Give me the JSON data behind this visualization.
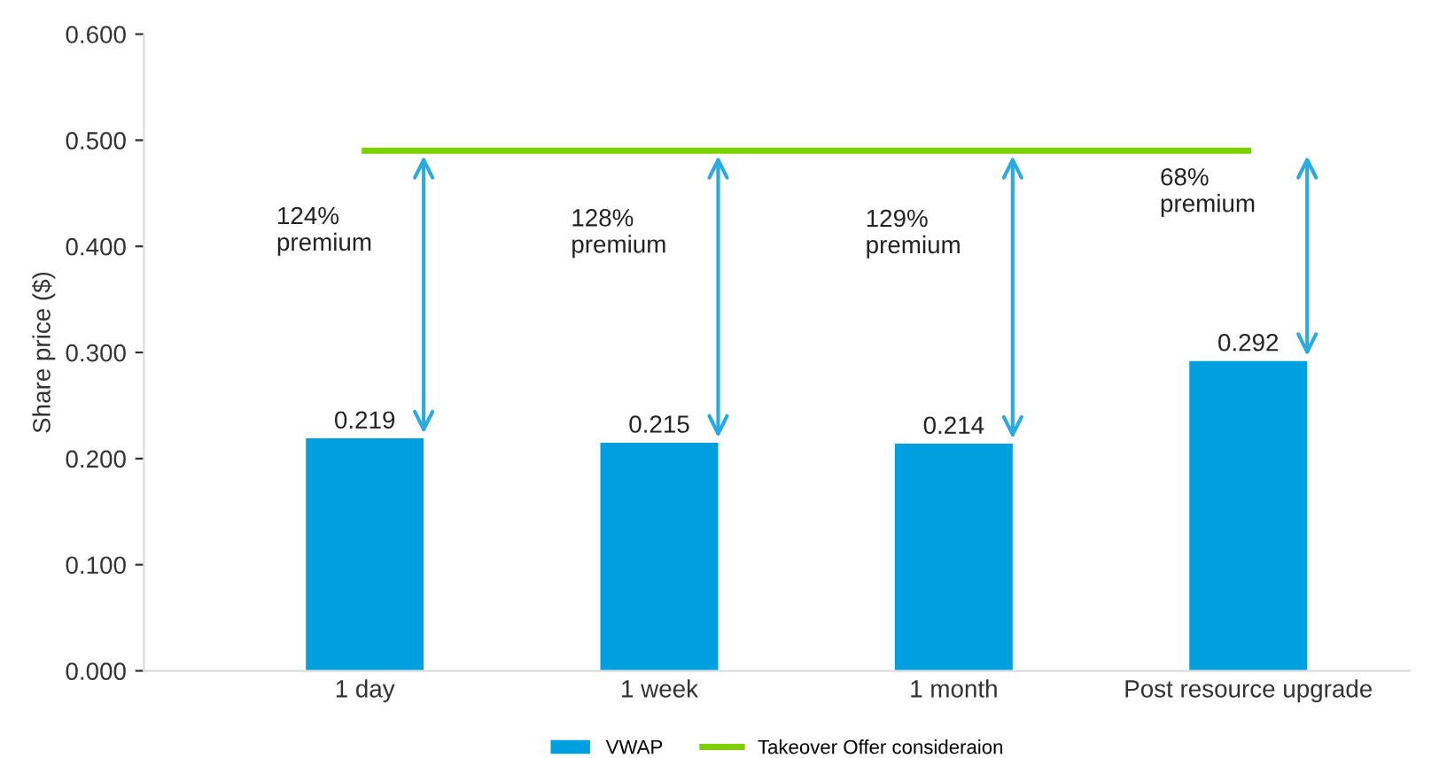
{
  "chart_data": {
    "type": "bar",
    "ylabel": "Share price ($)",
    "categories": [
      "1 day",
      "1 week",
      "1 month",
      "Post resource upgrade"
    ],
    "series": [
      {
        "name": "VWAP",
        "color": "#009fdf",
        "values": [
          0.219,
          0.215,
          0.214,
          0.292
        ],
        "data_labels": true
      },
      {
        "name": "Takeover Offer consideraion",
        "type": "line",
        "color": "#7ed000",
        "values": [
          0.49,
          0.49,
          0.49,
          0.49
        ]
      }
    ],
    "ylim": [
      0,
      0.6
    ],
    "yticks": [
      {
        "value": 0,
        "label": "0.000"
      },
      {
        "value": 0.1,
        "label": "0.100"
      },
      {
        "value": 0.2,
        "label": "0.200"
      },
      {
        "value": 0.3,
        "label": "0.300"
      },
      {
        "value": 0.4,
        "label": "0.400"
      },
      {
        "value": 0.5,
        "label": "0.500"
      },
      {
        "value": 0.6,
        "label": "0.600"
      }
    ],
    "annotations": [
      "124%\npremium",
      "128%\npremium",
      "129%\npremium",
      "68%\npremium"
    ],
    "grid": false,
    "legend": "bottom"
  }
}
